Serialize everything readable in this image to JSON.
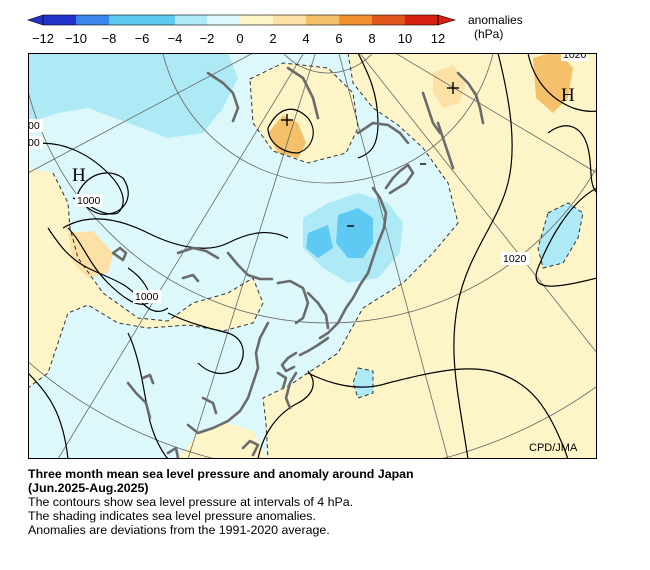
{
  "legend": {
    "title": "anomalies",
    "unit": "(hPa)",
    "ticks": [
      "−12",
      "−10",
      "−8",
      "−6",
      "−4",
      "−2",
      "0",
      "2",
      "4",
      "6",
      "8",
      "10",
      "12"
    ],
    "colors": [
      "#2233cc",
      "#3a86ee",
      "#5ec9f2",
      "#aeeaf6",
      "#dcf8fb",
      "#fdf4c8",
      "#fbe1a6",
      "#f5c06a",
      "#f09030",
      "#e2581c",
      "#d82011"
    ]
  },
  "map": {
    "pressure_labels": [
      "1020",
      "1020",
      "1000",
      "1000",
      "00",
      "00"
    ],
    "centers": [
      "H",
      "H"
    ],
    "credit": "CPD/JMA"
  },
  "caption": {
    "title_line1": "Three month mean sea level pressure and anomaly around Japan",
    "title_line2": "(Jun.2025-Aug.2025)",
    "line1": "The contours show sea level pressure at intervals of 4 hPa.",
    "line2": "The shading indicates sea level pressure anomalies.",
    "line3": "Anomalies are deviations from the 1991-2020 average."
  }
}
